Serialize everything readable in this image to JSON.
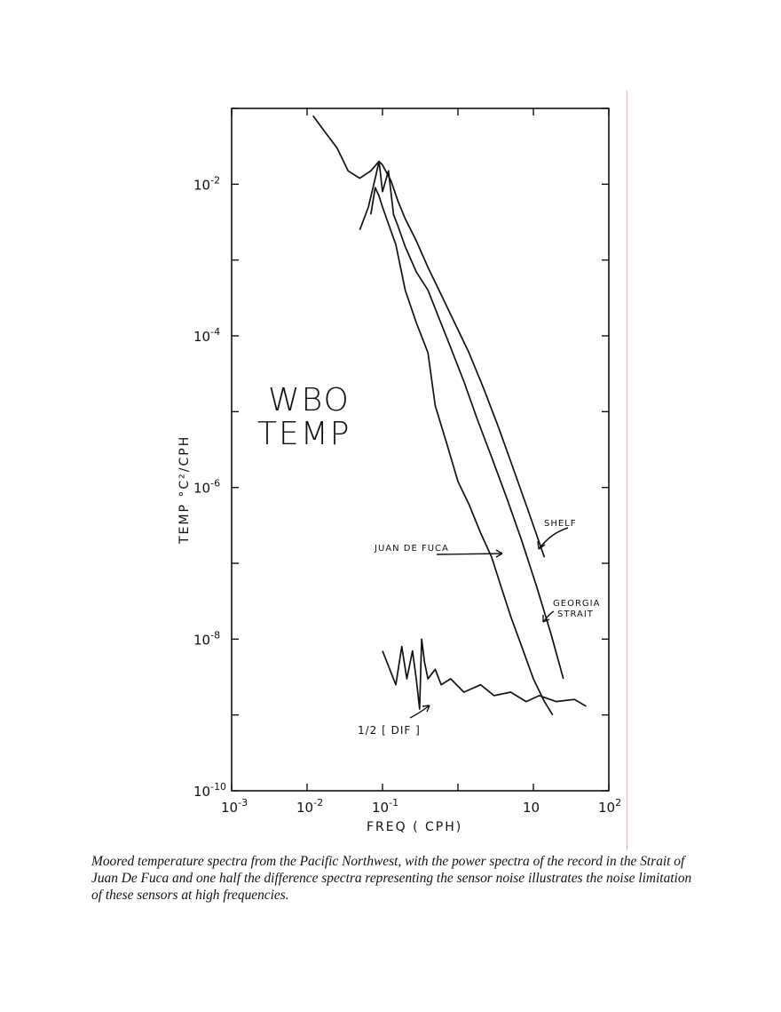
{
  "chart_data": {
    "type": "line",
    "title": "WBO TEMP",
    "title_lines": [
      "WBO",
      "TEMP"
    ],
    "xlabel": "FREQ ( CPH)",
    "ylabel": "TEMP  °C²/CPH",
    "x_scale": "log",
    "y_scale": "log",
    "xlim": [
      0.001,
      100
    ],
    "ylim": [
      1e-10,
      0.1
    ],
    "x_ticks": [
      {
        "value": 0.001,
        "base": "10",
        "exp": "-3"
      },
      {
        "value": 0.01,
        "base": "10",
        "exp": "-2"
      },
      {
        "value": 0.1,
        "base": "10",
        "exp": "-1"
      },
      {
        "value": 10,
        "base": "10",
        "exp": ""
      },
      {
        "value": 100,
        "base": "10",
        "exp": "2"
      }
    ],
    "y_ticks": [
      {
        "value": 0.01,
        "base": "10",
        "exp": "-2"
      },
      {
        "value": 0.0001,
        "base": "10",
        "exp": "-4"
      },
      {
        "value": 1e-06,
        "base": "10",
        "exp": "-6"
      },
      {
        "value": 1e-08,
        "base": "10",
        "exp": "-8"
      },
      {
        "value": 1e-10,
        "base": "10",
        "exp": "-10"
      }
    ],
    "series": [
      {
        "name": "SHELF",
        "x": [
          0.012,
          0.017,
          0.025,
          0.035,
          0.05,
          0.07,
          0.09,
          0.1,
          0.13,
          0.16,
          0.2,
          0.28,
          0.4,
          0.6,
          0.9,
          1.4,
          2.2,
          3.5,
          5.5,
          8.5,
          14
        ],
        "y": [
          0.08,
          0.05,
          0.03,
          0.015,
          0.012,
          0.015,
          0.02,
          0.018,
          0.011,
          0.006,
          0.0035,
          0.0018,
          0.0008,
          0.00035,
          0.00015,
          6e-05,
          2e-05,
          6e-06,
          1.7e-06,
          5e-07,
          1.2e-07
        ]
      },
      {
        "name": "GEORGIA STRAIT",
        "x": [
          0.05,
          0.065,
          0.08,
          0.09,
          0.1,
          0.12,
          0.14,
          0.16,
          0.2,
          0.28,
          0.4,
          0.55,
          0.8,
          1.2,
          1.8,
          2.8,
          4.5,
          7,
          11,
          17,
          25
        ],
        "y": [
          0.0025,
          0.005,
          0.012,
          0.02,
          0.008,
          0.015,
          0.004,
          0.0028,
          0.0015,
          0.0007,
          0.0004,
          0.00018,
          7e-05,
          2.5e-05,
          8e-06,
          2.5e-06,
          7e-07,
          2e-07,
          5e-08,
          1.2e-08,
          3e-09
        ]
      },
      {
        "name": "JUAN DE FUCA",
        "x": [
          0.07,
          0.08,
          0.09,
          0.1,
          0.12,
          0.15,
          0.2,
          0.28,
          0.4,
          0.5,
          0.7,
          1,
          1.4,
          2,
          2.8,
          3.5,
          5,
          7,
          10,
          14,
          18
        ],
        "y": [
          0.004,
          0.009,
          0.007,
          0.005,
          0.003,
          0.0016,
          0.0004,
          0.00015,
          6e-05,
          1.2e-05,
          4e-06,
          1.2e-06,
          6e-07,
          2.5e-07,
          1.2e-07,
          6e-08,
          2e-08,
          8e-09,
          3e-09,
          1.5e-09,
          1e-09
        ]
      },
      {
        "name": "1/2 [DIF]",
        "x": [
          0.1,
          0.15,
          0.18,
          0.21,
          0.25,
          0.28,
          0.31,
          0.33,
          0.36,
          0.4,
          0.5,
          0.6,
          0.8,
          1.2,
          2,
          3,
          5,
          8,
          12,
          20,
          35,
          50
        ],
        "y": [
          7e-09,
          2.5e-09,
          8e-09,
          3e-09,
          7e-09,
          3e-09,
          1.2e-09,
          1e-08,
          5e-09,
          3e-09,
          4e-09,
          2.5e-09,
          3e-09,
          2e-09,
          2.5e-09,
          1.8e-09,
          2e-09,
          1.5e-09,
          1.8e-09,
          1.5e-09,
          1.6e-09,
          1.3e-09
        ]
      }
    ],
    "annotations": {
      "shelf": "SHELF",
      "juan": "JUAN  DE  FUCA",
      "georgia_1": "GEORGIA",
      "georgia_2": "STRAIT",
      "dif": "1/2 [ DIF ]"
    }
  },
  "caption": "Moored temperature spectra from the Pacific Northwest, with the power spectra of the record in the Strait of Juan De Fuca and one half the difference spectra representing the sensor noise illustrates the noise limitation of these sensors at high frequencies."
}
